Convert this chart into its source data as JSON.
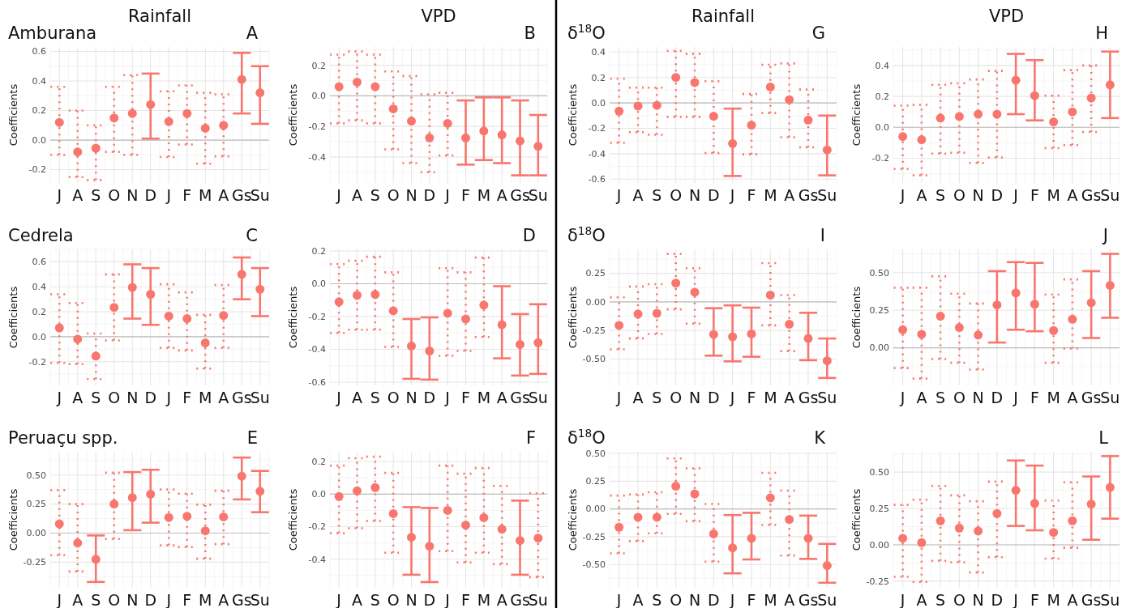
{
  "chart_data": [
    {
      "type": "scatter",
      "title": "Rainfall",
      "subtitle": "Amburana",
      "annotations": [
        "A"
      ],
      "ylabel": "Coefficients",
      "categories": [
        "J",
        "A",
        "S",
        "O",
        "N",
        "D",
        "J",
        "F",
        "M",
        "A",
        "Gs",
        "Su"
      ],
      "ylim": [
        -0.29,
        0.63
      ],
      "yticks": [
        {
          "value": -0.2,
          "label": "-0.2"
        },
        {
          "value": 0,
          "label": "0.0"
        },
        {
          "value": 0.2,
          "label": "0.2"
        },
        {
          "value": 0.4,
          "label": "0.4"
        },
        {
          "value": 0.6,
          "label": "0.6"
        }
      ],
      "grid": true,
      "marker": "circle",
      "ref_lines": [
        {
          "axis": "y",
          "value": 0,
          "color": "#bdbdbd"
        }
      ],
      "series": [
        {
          "color": "#f8766d",
          "line_style": "solid",
          "values": [
            null,
            null,
            null,
            null,
            null,
            0.24,
            null,
            null,
            null,
            null,
            0.41,
            0.32
          ],
          "errors": [
            null,
            null,
            null,
            null,
            null,
            [
              0.01,
              0.45
            ],
            null,
            null,
            null,
            null,
            [
              0.18,
              0.59
            ],
            [
              0.11,
              0.5
            ]
          ]
        },
        {
          "color": "#f8766d",
          "line_style": "dotted",
          "values": [
            0.12,
            -0.08,
            -0.055,
            0.15,
            0.18,
            null,
            0.125,
            0.18,
            0.08,
            0.1,
            null,
            null
          ],
          "errors": [
            [
              -0.1,
              0.36
            ],
            [
              -0.25,
              0.2
            ],
            [
              -0.27,
              0.1
            ],
            [
              -0.08,
              0.36
            ],
            [
              -0.1,
              0.44
            ],
            null,
            [
              -0.115,
              0.33
            ],
            [
              -0.03,
              0.37
            ],
            [
              -0.16,
              0.32
            ],
            [
              -0.11,
              0.31
            ],
            null,
            null
          ]
        }
      ]
    },
    {
      "type": "scatter",
      "title": "VPD",
      "annotations": [
        "B"
      ],
      "ylabel": "Coefficients",
      "categories": [
        "J",
        "A",
        "S",
        "O",
        "N",
        "D",
        "J",
        "F",
        "M",
        "A",
        "Gs",
        "Su"
      ],
      "ylim": [
        -0.57,
        0.32
      ],
      "yticks": [
        {
          "value": -0.4,
          "label": "-0.4"
        },
        {
          "value": -0.2,
          "label": "-0.2"
        },
        {
          "value": 0,
          "label": "0.0"
        },
        {
          "value": 0.2,
          "label": "0.2"
        }
      ],
      "grid": true,
      "marker": "circle",
      "ref_lines": [
        {
          "axis": "y",
          "value": 0,
          "color": "#bdbdbd"
        }
      ],
      "series": [
        {
          "color": "#f8766d",
          "line_style": "solid",
          "values": [
            null,
            null,
            null,
            null,
            null,
            null,
            null,
            -0.275,
            -0.23,
            -0.255,
            -0.295,
            -0.33
          ],
          "errors": [
            null,
            null,
            null,
            null,
            null,
            null,
            null,
            [
              -0.45,
              -0.03
            ],
            [
              -0.42,
              -0.01
            ],
            [
              -0.44,
              -0.01
            ],
            [
              -0.52,
              -0.03
            ],
            [
              -0.52,
              -0.125
            ]
          ]
        },
        {
          "color": "#f8766d",
          "line_style": "dotted",
          "values": [
            0.06,
            0.09,
            0.06,
            -0.085,
            -0.165,
            -0.275,
            -0.18,
            null,
            null,
            null,
            null,
            null
          ],
          "errors": [
            [
              -0.18,
              0.27
            ],
            [
              -0.16,
              0.29
            ],
            [
              -0.18,
              0.27
            ],
            [
              -0.35,
              0.16
            ],
            [
              -0.44,
              0.13
            ],
            [
              -0.5,
              0.01
            ],
            [
              -0.39,
              0.02
            ],
            null,
            null,
            null,
            null,
            null
          ]
        }
      ]
    },
    {
      "type": "scatter",
      "title": "Rainfall",
      "subtitle": "δ$^{18}$O",
      "annotations": [
        "G"
      ],
      "ylabel": "Coefficients",
      "categories": [
        "J",
        "A",
        "S",
        "O",
        "N",
        "D",
        "J",
        "F",
        "M",
        "A",
        "Gs",
        "Su"
      ],
      "ylim": [
        -0.63,
        0.44
      ],
      "yticks": [
        {
          "value": -0.6,
          "label": "-0.6"
        },
        {
          "value": -0.4,
          "label": "-0.4"
        },
        {
          "value": -0.2,
          "label": "-0.2"
        },
        {
          "value": 0,
          "label": "0.0"
        },
        {
          "value": 0.2,
          "label": "0.2"
        },
        {
          "value": 0.4,
          "label": "0.4"
        }
      ],
      "grid": true,
      "marker": "circle",
      "ref_lines": [
        {
          "axis": "y",
          "value": 0,
          "color": "#bdbdbd"
        }
      ],
      "series": [
        {
          "color": "#f8766d",
          "line_style": "solid",
          "values": [
            null,
            null,
            null,
            null,
            null,
            null,
            -0.32,
            null,
            null,
            null,
            null,
            -0.37
          ],
          "errors": [
            null,
            null,
            null,
            null,
            null,
            null,
            [
              -0.575,
              -0.045
            ],
            null,
            null,
            null,
            null,
            [
              -0.57,
              -0.1
            ]
          ]
        },
        {
          "color": "#f8766d",
          "line_style": "dotted",
          "values": [
            -0.065,
            -0.025,
            -0.02,
            0.2,
            0.16,
            -0.105,
            null,
            -0.175,
            0.125,
            0.025,
            -0.135,
            null
          ],
          "errors": [
            [
              -0.315,
              0.19
            ],
            [
              -0.23,
              0.12
            ],
            [
              -0.25,
              0.12
            ],
            [
              -0.11,
              0.41
            ],
            [
              -0.11,
              0.385
            ],
            [
              -0.395,
              0.17
            ],
            null,
            [
              -0.405,
              0.07
            ],
            [
              -0.08,
              0.3
            ],
            [
              -0.27,
              0.31
            ],
            [
              -0.35,
              0.105
            ],
            null
          ]
        }
      ]
    },
    {
      "type": "scatter",
      "title": "VPD",
      "annotations": [
        "H"
      ],
      "ylabel": "Coefficients",
      "categories": [
        "J",
        "A",
        "S",
        "O",
        "N",
        "D",
        "J",
        "F",
        "M",
        "A",
        "Gs",
        "Su"
      ],
      "ylim": [
        -0.36,
        0.52
      ],
      "yticks": [
        {
          "value": -0.2,
          "label": "-0.2"
        },
        {
          "value": 0,
          "label": "0.0"
        },
        {
          "value": 0.2,
          "label": "0.2"
        },
        {
          "value": 0.4,
          "label": "0.4"
        }
      ],
      "grid": true,
      "marker": "circle",
      "ref_lines": [
        {
          "axis": "y",
          "value": 0,
          "color": "#bdbdbd"
        }
      ],
      "series": [
        {
          "color": "#f8766d",
          "line_style": "solid",
          "values": [
            null,
            null,
            null,
            null,
            null,
            null,
            0.305,
            0.205,
            null,
            null,
            null,
            0.275
          ],
          "errors": [
            null,
            null,
            null,
            null,
            null,
            null,
            [
              0.085,
              0.475
            ],
            [
              0.045,
              0.435
            ],
            null,
            null,
            null,
            [
              0.06,
              0.49
            ]
          ]
        },
        {
          "color": "#f8766d",
          "line_style": "dotted",
          "values": [
            -0.06,
            -0.08,
            0.06,
            0.07,
            0.085,
            0.085,
            null,
            null,
            0.035,
            0.1,
            0.19,
            null
          ],
          "errors": [
            [
              -0.27,
              0.14
            ],
            [
              -0.31,
              0.145
            ],
            [
              -0.17,
              0.275
            ],
            [
              -0.165,
              0.285
            ],
            [
              -0.23,
              0.31
            ],
            [
              -0.195,
              0.365
            ],
            null,
            null,
            [
              -0.135,
              0.205
            ],
            [
              -0.115,
              0.37
            ],
            [
              -0.03,
              0.4
            ],
            null
          ]
        }
      ]
    },
    {
      "type": "scatter",
      "subtitle": "Cedrela",
      "annotations": [
        "C"
      ],
      "ylabel": "Coefficients",
      "categories": [
        "J",
        "A",
        "S",
        "O",
        "N",
        "D",
        "J",
        "F",
        "M",
        "A",
        "Gs",
        "Su"
      ],
      "ylim": [
        -0.39,
        0.7
      ],
      "yticks": [
        {
          "value": -0.2,
          "label": "-0.2"
        },
        {
          "value": 0,
          "label": "0.0"
        },
        {
          "value": 0.2,
          "label": "0.2"
        },
        {
          "value": 0.4,
          "label": "0.4"
        },
        {
          "value": 0.6,
          "label": "0.6"
        }
      ],
      "grid": true,
      "marker": "circle",
      "ref_lines": [
        {
          "axis": "y",
          "value": 0,
          "color": "#bdbdbd"
        }
      ],
      "series": [
        {
          "color": "#f8766d",
          "line_style": "solid",
          "values": [
            null,
            null,
            null,
            null,
            0.395,
            0.34,
            null,
            null,
            null,
            null,
            0.5,
            0.38
          ],
          "errors": [
            null,
            null,
            null,
            null,
            [
              0.145,
              0.58
            ],
            [
              0.095,
              0.55
            ],
            null,
            null,
            null,
            null,
            [
              0.3,
              0.635
            ],
            [
              0.165,
              0.55
            ]
          ]
        },
        {
          "color": "#f8766d",
          "line_style": "dotted",
          "values": [
            0.07,
            -0.02,
            -0.155,
            0.235,
            null,
            null,
            0.165,
            0.145,
            -0.05,
            0.17,
            null,
            null
          ],
          "errors": [
            [
              -0.21,
              0.34
            ],
            [
              -0.22,
              0.27
            ],
            [
              -0.34,
              0.025
            ],
            [
              -0.03,
              0.5
            ],
            null,
            null,
            [
              -0.09,
              0.42
            ],
            [
              -0.11,
              0.355
            ],
            [
              -0.255,
              0.175
            ],
            [
              -0.09,
              0.415
            ],
            null,
            null
          ]
        }
      ]
    },
    {
      "type": "scatter",
      "annotations": [
        "D"
      ],
      "ylabel": "Coefficients",
      "categories": [
        "J",
        "A",
        "S",
        "O",
        "N",
        "D",
        "J",
        "F",
        "M",
        "A",
        "Gs",
        "Su"
      ],
      "ylim": [
        -0.62,
        0.21
      ],
      "yticks": [
        {
          "value": -0.6,
          "label": "-0.6"
        },
        {
          "value": -0.4,
          "label": "-0.4"
        },
        {
          "value": -0.2,
          "label": "-0.2"
        },
        {
          "value": 0,
          "label": "0.0"
        },
        {
          "value": 0.2,
          "label": "0.2"
        }
      ],
      "grid": true,
      "marker": "circle",
      "ref_lines": [
        {
          "axis": "y",
          "value": 0,
          "color": "#bdbdbd"
        }
      ],
      "series": [
        {
          "color": "#f8766d",
          "line_style": "solid",
          "values": [
            null,
            null,
            null,
            null,
            -0.38,
            -0.41,
            null,
            null,
            null,
            -0.25,
            -0.37,
            -0.36
          ],
          "errors": [
            null,
            null,
            null,
            null,
            [
              -0.58,
              -0.215
            ],
            [
              -0.585,
              -0.205
            ],
            null,
            null,
            null,
            [
              -0.455,
              -0.015
            ],
            [
              -0.56,
              -0.185
            ],
            [
              -0.55,
              -0.125
            ]
          ]
        },
        {
          "color": "#f8766d",
          "line_style": "dotted",
          "values": [
            -0.11,
            -0.07,
            -0.065,
            -0.165,
            null,
            null,
            -0.18,
            -0.215,
            -0.13,
            null,
            null,
            null
          ],
          "errors": [
            [
              -0.3,
              0.12
            ],
            [
              -0.28,
              0.14
            ],
            [
              -0.28,
              0.165
            ],
            [
              -0.385,
              0.07
            ],
            null,
            null,
            [
              -0.44,
              0.095
            ],
            [
              -0.41,
              0.07
            ],
            [
              -0.325,
              0.16
            ],
            null,
            null,
            null
          ]
        }
      ]
    },
    {
      "type": "scatter",
      "subtitle": "δ$^{18}$O",
      "annotations": [
        "I"
      ],
      "ylabel": "Coefficients",
      "categories": [
        "J",
        "A",
        "S",
        "O",
        "N",
        "D",
        "J",
        "F",
        "M",
        "A",
        "Gs",
        "Su"
      ],
      "ylim": [
        -0.73,
        0.46
      ],
      "yticks": [
        {
          "value": -0.5,
          "label": "-0.50"
        },
        {
          "value": -0.25,
          "label": "-0.25"
        },
        {
          "value": 0,
          "label": "0.00"
        },
        {
          "value": 0.25,
          "label": "0.25"
        }
      ],
      "grid": true,
      "marker": "circle",
      "ref_lines": [
        {
          "axis": "y",
          "value": 0,
          "color": "#bdbdbd"
        }
      ],
      "series": [
        {
          "color": "#f8766d",
          "line_style": "solid",
          "values": [
            null,
            null,
            null,
            null,
            null,
            -0.285,
            -0.305,
            -0.28,
            null,
            null,
            -0.32,
            -0.515
          ],
          "errors": [
            null,
            null,
            null,
            null,
            null,
            [
              -0.47,
              -0.055
            ],
            [
              -0.52,
              -0.03
            ],
            [
              -0.48,
              -0.05
            ],
            null,
            null,
            [
              -0.51,
              -0.095
            ],
            [
              -0.665,
              -0.32
            ]
          ]
        },
        {
          "color": "#f8766d",
          "line_style": "dotted",
          "values": [
            -0.205,
            -0.105,
            -0.1,
            0.165,
            0.085,
            null,
            null,
            null,
            0.06,
            -0.195,
            null,
            null
          ],
          "errors": [
            [
              -0.415,
              0.04
            ],
            [
              -0.32,
              0.135
            ],
            [
              -0.28,
              0.155
            ],
            [
              -0.065,
              0.42
            ],
            [
              -0.19,
              0.295
            ],
            null,
            null,
            null,
            [
              -0.205,
              0.34
            ],
            [
              -0.43,
              0.06
            ],
            null,
            null
          ]
        }
      ]
    },
    {
      "type": "scatter",
      "annotations": [
        "J"
      ],
      "ylabel": "Coefficients",
      "categories": [
        "J",
        "A",
        "S",
        "O",
        "N",
        "D",
        "J",
        "F",
        "M",
        "A",
        "Gs",
        "Su"
      ],
      "ylim": [
        -0.25,
        0.655
      ],
      "yticks": [
        {
          "value": 0,
          "label": "0.00"
        },
        {
          "value": 0.25,
          "label": "0.25"
        },
        {
          "value": 0.5,
          "label": "0.50"
        }
      ],
      "grid": true,
      "marker": "circle",
      "ref_lines": [
        {
          "axis": "y",
          "value": 0,
          "color": "#bdbdbd"
        }
      ],
      "series": [
        {
          "color": "#f8766d",
          "line_style": "solid",
          "values": [
            null,
            null,
            null,
            null,
            null,
            0.285,
            0.365,
            0.29,
            null,
            null,
            0.3,
            0.415
          ],
          "errors": [
            null,
            null,
            null,
            null,
            null,
            [
              0.035,
              0.51
            ],
            [
              0.12,
              0.57
            ],
            [
              0.11,
              0.565
            ],
            null,
            null,
            [
              0.065,
              0.51
            ],
            [
              0.2,
              0.625
            ]
          ]
        },
        {
          "color": "#f8766d",
          "line_style": "dotted",
          "values": [
            0.12,
            0.09,
            0.21,
            0.135,
            0.085,
            null,
            null,
            null,
            0.115,
            0.19,
            null,
            null
          ],
          "errors": [
            [
              -0.135,
              0.4
            ],
            [
              -0.205,
              0.4
            ],
            [
              -0.075,
              0.475
            ],
            [
              -0.1,
              0.36
            ],
            [
              -0.145,
              0.295
            ],
            null,
            null,
            null,
            [
              -0.1,
              0.355
            ],
            [
              -0.005,
              0.455
            ],
            null,
            null
          ]
        }
      ]
    },
    {
      "type": "scatter",
      "subtitle": "Peruaçu spp.",
      "annotations": [
        "E"
      ],
      "ylabel": "Coefficients",
      "categories": [
        "J",
        "A",
        "S",
        "O",
        "N",
        "D",
        "J",
        "F",
        "M",
        "A",
        "Gs",
        "Su"
      ],
      "ylim": [
        -0.47,
        0.7
      ],
      "yticks": [
        {
          "value": -0.25,
          "label": "-0.25"
        },
        {
          "value": 0,
          "label": "0.00"
        },
        {
          "value": 0.25,
          "label": "0.25"
        },
        {
          "value": 0.5,
          "label": "0.50"
        }
      ],
      "grid": true,
      "marker": "circle",
      "ref_lines": [
        {
          "axis": "y",
          "value": 0,
          "color": "#bdbdbd"
        }
      ],
      "series": [
        {
          "color": "#f8766d",
          "line_style": "solid",
          "values": [
            null,
            null,
            -0.225,
            null,
            0.305,
            0.335,
            null,
            null,
            null,
            null,
            0.49,
            0.36
          ],
          "errors": [
            null,
            null,
            [
              -0.42,
              -0.02
            ],
            null,
            [
              0.025,
              0.525
            ],
            [
              0.09,
              0.545
            ],
            null,
            null,
            null,
            null,
            [
              0.29,
              0.65
            ],
            [
              0.18,
              0.535
            ]
          ]
        },
        {
          "color": "#f8766d",
          "line_style": "dotted",
          "values": [
            0.08,
            -0.085,
            null,
            0.25,
            null,
            null,
            0.135,
            0.145,
            0.02,
            0.14,
            null,
            null
          ],
          "errors": [
            [
              -0.19,
              0.37
            ],
            [
              -0.33,
              0.25
            ],
            null,
            [
              -0.05,
              0.52
            ],
            null,
            null,
            [
              -0.105,
              0.375
            ],
            [
              -0.12,
              0.34
            ],
            [
              -0.22,
              0.245
            ],
            [
              -0.095,
              0.365
            ],
            null,
            null
          ]
        }
      ]
    },
    {
      "type": "scatter",
      "annotations": [
        "F"
      ],
      "ylabel": "Coefficients",
      "categories": [
        "J",
        "A",
        "S",
        "O",
        "N",
        "D",
        "J",
        "F",
        "M",
        "A",
        "Gs",
        "Su"
      ],
      "ylim": [
        -0.575,
        0.26
      ],
      "yticks": [
        {
          "value": -0.4,
          "label": "-0.4"
        },
        {
          "value": -0.2,
          "label": "-0.2"
        },
        {
          "value": 0,
          "label": "0.0"
        },
        {
          "value": 0.2,
          "label": "0.2"
        }
      ],
      "grid": true,
      "marker": "circle",
      "ref_lines": [
        {
          "axis": "y",
          "value": 0,
          "color": "#bdbdbd"
        }
      ],
      "series": [
        {
          "color": "#f8766d",
          "line_style": "solid",
          "values": [
            null,
            null,
            null,
            null,
            -0.265,
            -0.32,
            null,
            null,
            null,
            null,
            -0.285,
            null
          ],
          "errors": [
            null,
            null,
            null,
            null,
            [
              -0.495,
              -0.08
            ],
            [
              -0.54,
              -0.085
            ],
            null,
            null,
            null,
            null,
            [
              -0.495,
              -0.04
            ],
            null
          ]
        },
        {
          "color": "#f8766d",
          "line_style": "dotted",
          "values": [
            -0.015,
            0.02,
            0.04,
            -0.12,
            null,
            null,
            -0.1,
            -0.19,
            -0.145,
            -0.215,
            null,
            -0.27
          ],
          "errors": [
            [
              -0.24,
              0.175
            ],
            [
              -0.21,
              0.22
            ],
            [
              -0.165,
              0.23
            ],
            [
              -0.36,
              0.13
            ],
            null,
            null,
            [
              -0.35,
              0.175
            ],
            [
              -0.42,
              0.125
            ],
            [
              -0.36,
              0.16
            ],
            [
              -0.43,
              0.05
            ],
            null,
            [
              -0.51,
              0.005
            ]
          ]
        }
      ]
    },
    {
      "type": "scatter",
      "subtitle": "δ$^{18}$O",
      "annotations": [
        "K"
      ],
      "ylabel": "Coefficients",
      "categories": [
        "J",
        "A",
        "S",
        "O",
        "N",
        "D",
        "J",
        "F",
        "M",
        "A",
        "Gs",
        "Su"
      ],
      "ylim": [
        -0.71,
        0.515
      ],
      "yticks": [
        {
          "value": -0.5,
          "label": "-0.50"
        },
        {
          "value": -0.25,
          "label": "-0.25"
        },
        {
          "value": 0,
          "label": "0.00"
        },
        {
          "value": 0.25,
          "label": "0.25"
        },
        {
          "value": 0.5,
          "label": "0.50"
        }
      ],
      "grid": true,
      "marker": "circle",
      "ref_lines": [
        {
          "axis": "y",
          "value": 0,
          "color": "#bdbdbd"
        }
      ],
      "series": [
        {
          "color": "#f8766d",
          "line_style": "solid",
          "values": [
            null,
            null,
            null,
            null,
            null,
            null,
            -0.35,
            -0.265,
            null,
            null,
            -0.265,
            -0.51
          ],
          "errors": [
            null,
            null,
            null,
            null,
            null,
            null,
            [
              -0.58,
              -0.055
            ],
            [
              -0.455,
              -0.035
            ],
            null,
            null,
            [
              -0.45,
              -0.06
            ],
            [
              -0.665,
              -0.315
            ]
          ]
        },
        {
          "color": "#f8766d",
          "line_style": "dotted",
          "values": [
            -0.165,
            -0.075,
            -0.075,
            0.205,
            0.135,
            -0.225,
            null,
            null,
            0.1,
            -0.095,
            null,
            null
          ],
          "errors": [
            [
              -0.4,
              0.12
            ],
            [
              -0.29,
              0.13
            ],
            [
              -0.22,
              0.15
            ],
            [
              -0.045,
              0.455
            ],
            [
              -0.11,
              0.365
            ],
            [
              -0.475,
              0.045
            ],
            null,
            null,
            [
              -0.145,
              0.325
            ],
            [
              -0.42,
              0.165
            ],
            null,
            null
          ]
        }
      ]
    },
    {
      "type": "scatter",
      "annotations": [
        "L"
      ],
      "ylabel": "Coefficients",
      "categories": [
        "J",
        "A",
        "S",
        "O",
        "N",
        "D",
        "J",
        "F",
        "M",
        "A",
        "Gs",
        "Su"
      ],
      "ylim": [
        -0.295,
        0.64
      ],
      "yticks": [
        {
          "value": -0.25,
          "label": "-0.25"
        },
        {
          "value": 0,
          "label": "0.00"
        },
        {
          "value": 0.25,
          "label": "0.25"
        },
        {
          "value": 0.5,
          "label": "0.50"
        }
      ],
      "grid": true,
      "marker": "circle",
      "ref_lines": [
        {
          "axis": "y",
          "value": 0,
          "color": "#bdbdbd"
        }
      ],
      "series": [
        {
          "color": "#f8766d",
          "line_style": "solid",
          "values": [
            null,
            null,
            null,
            null,
            null,
            null,
            0.375,
            0.285,
            null,
            null,
            0.28,
            0.395
          ],
          "errors": [
            null,
            null,
            null,
            null,
            null,
            null,
            [
              0.13,
              0.58
            ],
            [
              0.1,
              0.545
            ],
            null,
            null,
            [
              0.035,
              0.47
            ],
            [
              0.18,
              0.61
            ]
          ]
        },
        {
          "color": "#f8766d",
          "line_style": "dotted",
          "values": [
            0.045,
            0.015,
            0.165,
            0.115,
            0.095,
            0.215,
            null,
            null,
            0.085,
            0.165,
            null,
            null
          ],
          "errors": [
            [
              -0.22,
              0.275
            ],
            [
              -0.255,
              0.31
            ],
            [
              -0.11,
              0.405
            ],
            [
              -0.12,
              0.34
            ],
            [
              -0.19,
              0.3
            ],
            [
              -0.085,
              0.435
            ],
            null,
            null,
            [
              -0.095,
              0.305
            ],
            [
              -0.02,
              0.43
            ],
            null,
            null
          ]
        }
      ]
    }
  ]
}
